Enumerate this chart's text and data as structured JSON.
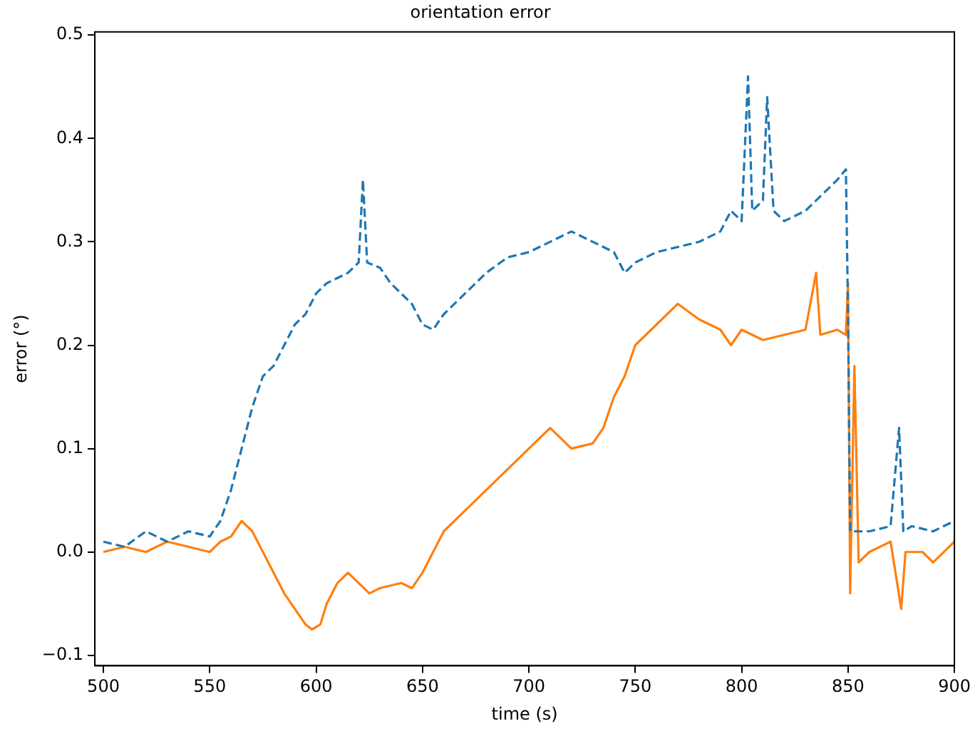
{
  "chart_data": {
    "type": "line",
    "title": "orientation error",
    "xlabel": "time (s)",
    "ylabel": "error (°)",
    "xlim": [
      496,
      900
    ],
    "xticks": [
      500,
      550,
      600,
      650,
      700,
      750,
      800,
      850,
      900
    ],
    "ylim": [
      -0.11,
      0.503
    ],
    "yticks": [
      {
        "value": -0.1,
        "label": "−0.1"
      },
      {
        "value": 0,
        "label": "0.0"
      },
      0.1,
      0.2,
      0.3,
      0.4,
      0.5
    ],
    "grid": false,
    "legend": false,
    "marker": "none",
    "series": [
      {
        "color": "#1f77b4",
        "line_style": "dashed",
        "x": [
          500,
          510,
          520,
          530,
          540,
          550,
          555,
          560,
          565,
          570,
          575,
          580,
          585,
          590,
          595,
          600,
          605,
          610,
          615,
          620,
          622,
          624,
          630,
          635,
          640,
          645,
          650,
          655,
          660,
          665,
          670,
          675,
          680,
          690,
          700,
          710,
          720,
          730,
          740,
          745,
          750,
          760,
          770,
          780,
          790,
          795,
          800,
          803,
          805,
          810,
          812,
          815,
          820,
          830,
          840,
          845,
          849,
          850,
          851,
          860,
          870,
          874,
          876,
          880,
          890,
          900
        ],
        "values": [
          0.01,
          0.005,
          0.02,
          0.01,
          0.02,
          0.015,
          0.03,
          0.06,
          0.1,
          0.14,
          0.17,
          0.18,
          0.2,
          0.22,
          0.23,
          0.25,
          0.26,
          0.265,
          0.27,
          0.28,
          0.36,
          0.28,
          0.275,
          0.26,
          0.25,
          0.24,
          0.22,
          0.215,
          0.23,
          0.24,
          0.25,
          0.26,
          0.27,
          0.285,
          0.29,
          0.3,
          0.31,
          0.3,
          0.29,
          0.27,
          0.28,
          0.29,
          0.295,
          0.3,
          0.31,
          0.33,
          0.32,
          0.46,
          0.33,
          0.34,
          0.44,
          0.33,
          0.32,
          0.33,
          0.35,
          0.36,
          0.37,
          0.23,
          0.02,
          0.02,
          0.025,
          0.12,
          0.02,
          0.025,
          0.02,
          0.03
        ]
      },
      {
        "color": "#ff7f0e",
        "line_style": "solid",
        "x": [
          500,
          510,
          520,
          530,
          540,
          550,
          555,
          560,
          565,
          570,
          575,
          580,
          585,
          590,
          595,
          598,
          602,
          605,
          610,
          615,
          620,
          625,
          630,
          640,
          645,
          650,
          655,
          660,
          670,
          680,
          690,
          700,
          710,
          715,
          720,
          730,
          735,
          740,
          745,
          750,
          760,
          770,
          780,
          790,
          795,
          800,
          810,
          820,
          830,
          835,
          837,
          845,
          849,
          850,
          851,
          853,
          855,
          860,
          870,
          875,
          877,
          885,
          890,
          900
        ],
        "values": [
          0.0,
          0.005,
          0.0,
          0.01,
          0.005,
          0.0,
          0.01,
          0.015,
          0.03,
          0.02,
          0.0,
          -0.02,
          -0.04,
          -0.055,
          -0.07,
          -0.075,
          -0.07,
          -0.05,
          -0.03,
          -0.02,
          -0.03,
          -0.04,
          -0.035,
          -0.03,
          -0.035,
          -0.02,
          0.0,
          0.02,
          0.04,
          0.06,
          0.08,
          0.1,
          0.12,
          0.11,
          0.1,
          0.105,
          0.12,
          0.15,
          0.17,
          0.2,
          0.22,
          0.24,
          0.225,
          0.215,
          0.2,
          0.215,
          0.205,
          0.21,
          0.215,
          0.27,
          0.21,
          0.215,
          0.21,
          0.26,
          -0.04,
          0.18,
          -0.01,
          0.0,
          0.01,
          -0.055,
          0.0,
          0.0,
          -0.01,
          0.01
        ]
      }
    ]
  }
}
